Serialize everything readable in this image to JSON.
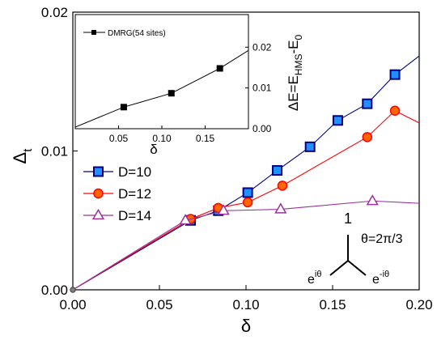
{
  "chart_data": {
    "type": "line",
    "main": {
      "x_label": "δ",
      "y_label": "Δ",
      "y_label_sub": "t",
      "xlim": [
        0,
        0.2
      ],
      "ylim": [
        0,
        0.02
      ],
      "x_ticks": [
        0.0,
        0.05,
        0.1,
        0.15,
        0.2
      ],
      "x_tick_labels": [
        "0.00",
        "0.05",
        "0.10",
        "0.15",
        "0.20"
      ],
      "y_ticks": [
        0.0,
        0.01,
        0.02
      ],
      "y_tick_labels": [
        "0.00",
        "0.01",
        "0.02"
      ],
      "legend_position": "left",
      "series": [
        {
          "name": "D=10",
          "color": "#000080",
          "marker": "square",
          "marker_face": "#1e90ff",
          "points": [
            [
              0.0,
              0.0
            ],
            [
              0.068,
              0.005
            ],
            [
              0.084,
              0.0057
            ],
            [
              0.101,
              0.007
            ],
            [
              0.118,
              0.0086
            ],
            [
              0.137,
              0.0103
            ],
            [
              0.153,
              0.0122
            ],
            [
              0.17,
              0.0134
            ],
            [
              0.186,
              0.0155
            ],
            [
              0.21,
              0.0178
            ]
          ]
        },
        {
          "name": "D=12",
          "color": "#ff0000",
          "marker": "circle",
          "marker_face": "#ff6600",
          "points": [
            [
              0.0,
              0.0
            ],
            [
              0.068,
              0.0051
            ],
            [
              0.084,
              0.0059
            ],
            [
              0.101,
              0.0063
            ],
            [
              0.121,
              0.0075
            ],
            [
              0.17,
              0.011
            ],
            [
              0.186,
              0.0129
            ],
            [
              0.205,
              0.0117
            ]
          ]
        },
        {
          "name": "D=14",
          "color": "#993399",
          "marker": "triangle",
          "marker_face": "#ffffff",
          "points": [
            [
              0.0,
              0.0
            ],
            [
              0.065,
              0.005
            ],
            [
              0.087,
              0.0057
            ],
            [
              0.12,
              0.0058
            ],
            [
              0.173,
              0.0064
            ],
            [
              0.205,
              0.0062
            ]
          ]
        }
      ]
    },
    "inset": {
      "x_label": "δ",
      "y_label": "ΔE=E",
      "y_label_sub": "HMS",
      "y_label_tail": "-E",
      "y_label_tail_sub": "0",
      "xlim": [
        0.0,
        0.2
      ],
      "ylim": [
        0.0,
        0.028
      ],
      "x_ticks": [
        0.05,
        0.1,
        0.15
      ],
      "x_tick_labels": [
        "0.05",
        "0.10",
        "0.15"
      ],
      "y_ticks": [
        0.0,
        0.01,
        0.02
      ],
      "y_tick_labels": [
        "0.00",
        "0.01",
        "0.02"
      ],
      "series": [
        {
          "name": "DMRG(54 sites)",
          "color": "#000000",
          "marker": "square",
          "marker_face": "#000000",
          "points": [
            [
              0.0,
              0.0004
            ],
            [
              0.056,
              0.0053
            ],
            [
              0.111,
              0.0087
            ],
            [
              0.167,
              0.0148
            ],
            [
              0.2,
              0.0192
            ]
          ]
        }
      ]
    },
    "diagram": {
      "top_label": "1",
      "theta_label": "θ=2π/3",
      "left_base": "e",
      "left_exp": "iθ",
      "right_base": "e",
      "right_exp": "-iθ"
    }
  }
}
